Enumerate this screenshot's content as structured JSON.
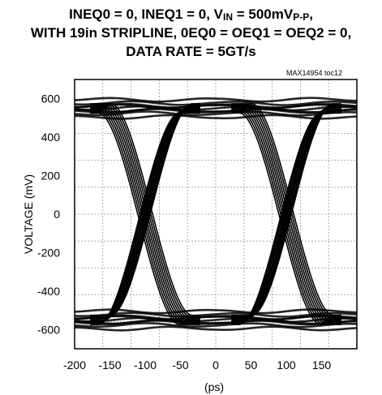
{
  "title": {
    "line1_pre": "INEQ0 = 0, INEQ1 = 0, V",
    "line1_sub1": "IN",
    "line1_mid": " = 500mV",
    "line1_sub2": "P-P",
    "line1_post": ",",
    "line2": "WITH 19in STRIPLINE, 0EQ0 = OEQ1 = OEQ2 = 0,",
    "line3": "DATA RATE = 5GT/s"
  },
  "figure_tag": "MAX14954 toc12",
  "chart_data": {
    "type": "line",
    "subtype": "eye-diagram",
    "xlabel": "(ps)",
    "ylabel": "VOLTAGE (mV)",
    "xlim": [
      -200,
      200
    ],
    "ylim": [
      -700,
      700
    ],
    "xticks": [
      -200,
      -150,
      -100,
      -50,
      0,
      50,
      100,
      150
    ],
    "xtick_labels": [
      "-200",
      "-150",
      "-100",
      "-50",
      "0",
      "50",
      "100",
      "150"
    ],
    "yticks": [
      600,
      400,
      200,
      0,
      -200,
      -400,
      -600
    ],
    "ytick_labels": [
      "600",
      "400",
      "200",
      "0",
      "-200",
      "-400",
      "-600"
    ],
    "grid": true,
    "unit_interval_ps": 200,
    "crossings_ps": [
      -100,
      100
    ],
    "high_level_mv": [
      510,
      590
    ],
    "low_level_mv": [
      -590,
      -510
    ]
  }
}
